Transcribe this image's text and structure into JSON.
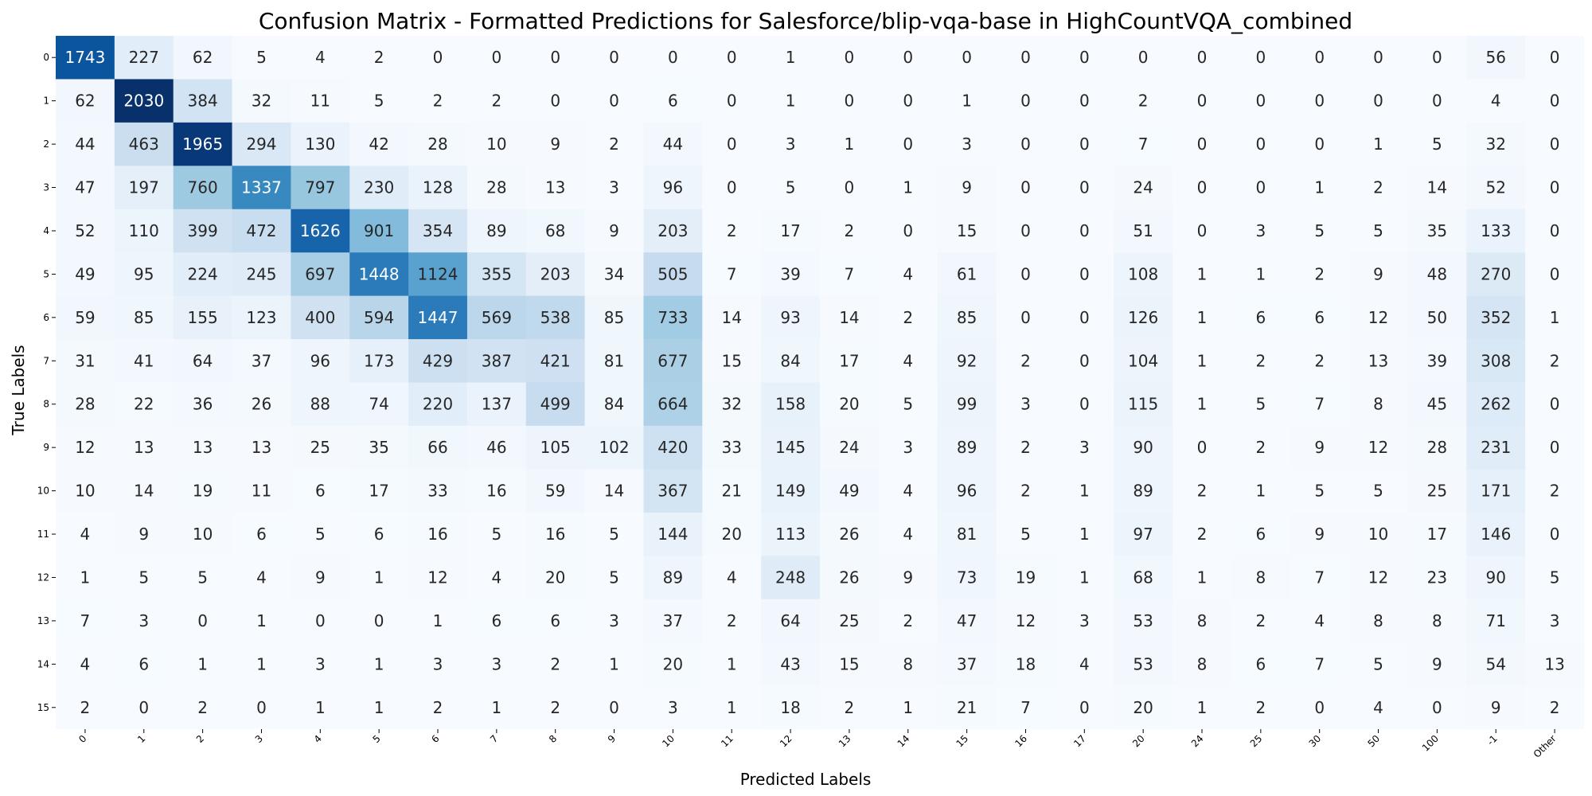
{
  "chart_data": {
    "type": "heatmap",
    "title": "Confusion Matrix - Formatted Predictions for Salesforce/blip-vqa-base in HighCountVQA_combined",
    "xlabel": "Predicted Labels",
    "ylabel": "True Labels",
    "x_categories": [
      "0",
      "1",
      "2",
      "3",
      "4",
      "5",
      "6",
      "7",
      "8",
      "9",
      "10",
      "11",
      "12",
      "13",
      "14",
      "15",
      "16",
      "17",
      "20",
      "24",
      "25",
      "30",
      "50",
      "100",
      "-1",
      "Other"
    ],
    "y_categories": [
      "0",
      "1",
      "2",
      "3",
      "4",
      "5",
      "6",
      "7",
      "8",
      "9",
      "10",
      "11",
      "12",
      "13",
      "14",
      "15"
    ],
    "colormap": "Blues",
    "color_low": "#f7fbff",
    "color_high": "#08306b",
    "value_range": [
      0,
      2030
    ],
    "colorbar": false,
    "values": [
      [
        1743,
        227,
        62,
        5,
        4,
        2,
        0,
        0,
        0,
        0,
        0,
        0,
        1,
        0,
        0,
        0,
        0,
        0,
        0,
        0,
        0,
        0,
        0,
        0,
        56,
        0
      ],
      [
        62,
        2030,
        384,
        32,
        11,
        5,
        2,
        2,
        0,
        0,
        6,
        0,
        1,
        0,
        0,
        1,
        0,
        0,
        2,
        0,
        0,
        0,
        0,
        0,
        4,
        0
      ],
      [
        44,
        463,
        1965,
        294,
        130,
        42,
        28,
        10,
        9,
        2,
        44,
        0,
        3,
        1,
        0,
        3,
        0,
        0,
        7,
        0,
        0,
        0,
        1,
        5,
        32,
        0
      ],
      [
        47,
        197,
        760,
        1337,
        797,
        230,
        128,
        28,
        13,
        3,
        96,
        0,
        5,
        0,
        1,
        9,
        0,
        0,
        24,
        0,
        0,
        1,
        2,
        14,
        52,
        0
      ],
      [
        52,
        110,
        399,
        472,
        1626,
        901,
        354,
        89,
        68,
        9,
        203,
        2,
        17,
        2,
        0,
        15,
        0,
        0,
        51,
        0,
        3,
        5,
        5,
        35,
        133,
        0
      ],
      [
        49,
        95,
        224,
        245,
        697,
        1448,
        1124,
        355,
        203,
        34,
        505,
        7,
        39,
        7,
        4,
        61,
        0,
        0,
        108,
        1,
        1,
        2,
        9,
        48,
        270,
        0
      ],
      [
        59,
        85,
        155,
        123,
        400,
        594,
        1447,
        569,
        538,
        85,
        733,
        14,
        93,
        14,
        2,
        85,
        0,
        0,
        126,
        1,
        6,
        6,
        12,
        50,
        352,
        1
      ],
      [
        31,
        41,
        64,
        37,
        96,
        173,
        429,
        387,
        421,
        81,
        677,
        15,
        84,
        17,
        4,
        92,
        2,
        0,
        104,
        1,
        2,
        2,
        13,
        39,
        308,
        2
      ],
      [
        28,
        22,
        36,
        26,
        88,
        74,
        220,
        137,
        499,
        84,
        664,
        32,
        158,
        20,
        5,
        99,
        3,
        0,
        115,
        1,
        5,
        7,
        8,
        45,
        262,
        0
      ],
      [
        12,
        13,
        13,
        13,
        25,
        35,
        66,
        46,
        105,
        102,
        420,
        33,
        145,
        24,
        3,
        89,
        2,
        3,
        90,
        0,
        2,
        9,
        12,
        28,
        231,
        0
      ],
      [
        10,
        14,
        19,
        11,
        6,
        17,
        33,
        16,
        59,
        14,
        367,
        21,
        149,
        49,
        4,
        96,
        2,
        1,
        89,
        2,
        1,
        5,
        5,
        25,
        171,
        2
      ],
      [
        4,
        9,
        10,
        6,
        5,
        6,
        16,
        5,
        16,
        5,
        144,
        20,
        113,
        26,
        4,
        81,
        5,
        1,
        97,
        2,
        6,
        9,
        10,
        17,
        146,
        0
      ],
      [
        1,
        5,
        5,
        4,
        9,
        1,
        12,
        4,
        20,
        5,
        89,
        4,
        248,
        26,
        9,
        73,
        19,
        1,
        68,
        1,
        8,
        7,
        12,
        23,
        90,
        5
      ],
      [
        7,
        3,
        0,
        1,
        0,
        0,
        1,
        6,
        6,
        3,
        37,
        2,
        64,
        25,
        2,
        47,
        12,
        3,
        53,
        8,
        2,
        4,
        8,
        8,
        71,
        3
      ],
      [
        4,
        6,
        1,
        1,
        3,
        1,
        3,
        3,
        2,
        1,
        20,
        1,
        43,
        15,
        8,
        37,
        18,
        4,
        53,
        8,
        6,
        7,
        5,
        9,
        54,
        13
      ],
      [
        2,
        0,
        2,
        0,
        1,
        1,
        2,
        1,
        2,
        0,
        3,
        1,
        18,
        2,
        1,
        21,
        7,
        0,
        20,
        1,
        2,
        0,
        4,
        0,
        9,
        2
      ]
    ]
  }
}
